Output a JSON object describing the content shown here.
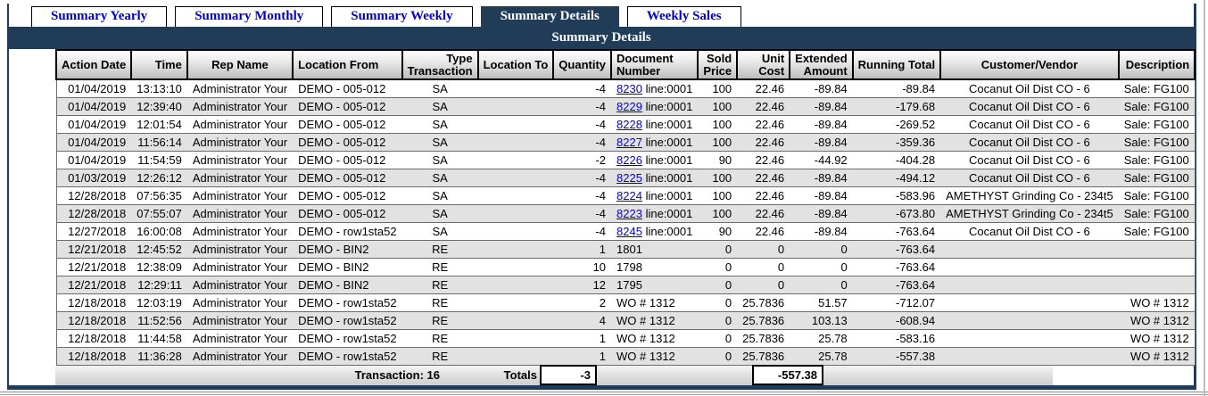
{
  "title": "Summary Details",
  "tabs": [
    {
      "label": "Summary Yearly",
      "active": false
    },
    {
      "label": "Summary Monthly",
      "active": false
    },
    {
      "label": "Summary Weekly",
      "active": false
    },
    {
      "label": "Summary Details",
      "active": true
    },
    {
      "label": "Weekly Sales",
      "active": false
    }
  ],
  "colors": {
    "frame_navy": "#203c57",
    "tab_text_blue": "#0000cc",
    "link_blue": "#0000e6",
    "row_stripe_gray": "#e2e2e2"
  },
  "table": {
    "columns": [
      {
        "lines": [
          "Action Date"
        ]
      },
      {
        "lines": [
          "Time"
        ]
      },
      {
        "lines": [
          "Rep Name"
        ]
      },
      {
        "lines": [
          "Location From"
        ]
      },
      {
        "lines": [
          "Type",
          "Transaction"
        ]
      },
      {
        "lines": [
          "Location To"
        ]
      },
      {
        "lines": [
          "Quantity"
        ]
      },
      {
        "lines": [
          "Document",
          "Number"
        ]
      },
      {
        "lines": [
          "Sold",
          "Price"
        ]
      },
      {
        "lines": [
          "Unit",
          "Cost"
        ]
      },
      {
        "lines": [
          "Extended",
          "Amount"
        ]
      },
      {
        "lines": [
          "Running Total"
        ]
      },
      {
        "lines": [
          "Customer/Vendor"
        ]
      },
      {
        "lines": [
          "Description"
        ]
      }
    ],
    "rows": [
      {
        "date": "01/04/2019",
        "time": "13:13:10",
        "rep": "Administrator Your",
        "from": "DEMO - 005-012",
        "type": "SA",
        "to": "",
        "qty": "-4",
        "doc_link": "8230",
        "doc_text": " line:0001",
        "sold": "100",
        "unit": "22.46",
        "ext": "-89.84",
        "run": "-89.84",
        "customer": "Cocanut Oil Dist CO - 6",
        "desc": "Sale: FG100"
      },
      {
        "date": "01/04/2019",
        "time": "12:39:40",
        "rep": "Administrator Your",
        "from": "DEMO - 005-012",
        "type": "SA",
        "to": "",
        "qty": "-4",
        "doc_link": "8229",
        "doc_text": " line:0001",
        "sold": "100",
        "unit": "22.46",
        "ext": "-89.84",
        "run": "-179.68",
        "customer": "Cocanut Oil Dist CO - 6",
        "desc": "Sale: FG100"
      },
      {
        "date": "01/04/2019",
        "time": "12:01:54",
        "rep": "Administrator Your",
        "from": "DEMO - 005-012",
        "type": "SA",
        "to": "",
        "qty": "-4",
        "doc_link": "8228",
        "doc_text": " line:0001",
        "sold": "100",
        "unit": "22.46",
        "ext": "-89.84",
        "run": "-269.52",
        "customer": "Cocanut Oil Dist CO - 6",
        "desc": "Sale: FG100"
      },
      {
        "date": "01/04/2019",
        "time": "11:56:14",
        "rep": "Administrator Your",
        "from": "DEMO - 005-012",
        "type": "SA",
        "to": "",
        "qty": "-4",
        "doc_link": "8227",
        "doc_text": " line:0001",
        "sold": "100",
        "unit": "22.46",
        "ext": "-89.84",
        "run": "-359.36",
        "customer": "Cocanut Oil Dist CO - 6",
        "desc": "Sale: FG100"
      },
      {
        "date": "01/04/2019",
        "time": "11:54:59",
        "rep": "Administrator Your",
        "from": "DEMO - 005-012",
        "type": "SA",
        "to": "",
        "qty": "-2",
        "doc_link": "8226",
        "doc_text": " line:0001",
        "sold": "90",
        "unit": "22.46",
        "ext": "-44.92",
        "run": "-404.28",
        "customer": "Cocanut Oil Dist CO - 6",
        "desc": "Sale: FG100"
      },
      {
        "date": "01/03/2019",
        "time": "12:26:12",
        "rep": "Administrator Your",
        "from": "DEMO - 005-012",
        "type": "SA",
        "to": "",
        "qty": "-4",
        "doc_link": "8225",
        "doc_text": " line:0001",
        "sold": "100",
        "unit": "22.46",
        "ext": "-89.84",
        "run": "-494.12",
        "customer": "Cocanut Oil Dist CO - 6",
        "desc": "Sale: FG100"
      },
      {
        "date": "12/28/2018",
        "time": "07:56:35",
        "rep": "Administrator Your",
        "from": "DEMO - 005-012",
        "type": "SA",
        "to": "",
        "qty": "-4",
        "doc_link": "8224",
        "doc_text": " line:0001",
        "sold": "100",
        "unit": "22.46",
        "ext": "-89.84",
        "run": "-583.96",
        "customer": "AMETHYST Grinding Co - 234t5",
        "desc": "Sale: FG100"
      },
      {
        "date": "12/28/2018",
        "time": "07:55:07",
        "rep": "Administrator Your",
        "from": "DEMO - 005-012",
        "type": "SA",
        "to": "",
        "qty": "-4",
        "doc_link": "8223",
        "doc_text": " line:0001",
        "sold": "100",
        "unit": "22.46",
        "ext": "-89.84",
        "run": "-673.80",
        "customer": "AMETHYST Grinding Co - 234t5",
        "desc": "Sale: FG100"
      },
      {
        "date": "12/27/2018",
        "time": "16:00:08",
        "rep": "Administrator Your",
        "from": "DEMO - row1sta52",
        "type": "SA",
        "to": "",
        "qty": "-4",
        "doc_link": "8245",
        "doc_text": " line:0001",
        "sold": "90",
        "unit": "22.46",
        "ext": "-89.84",
        "run": "-763.64",
        "customer": "Cocanut Oil Dist CO - 6",
        "desc": "Sale: FG100"
      },
      {
        "date": "12/21/2018",
        "time": "12:45:52",
        "rep": "Administrator Your",
        "from": "DEMO - BIN2",
        "type": "RE",
        "to": "",
        "qty": "1",
        "doc_link": "",
        "doc_text": "1801",
        "sold": "0",
        "unit": "0",
        "ext": "0",
        "run": "-763.64",
        "customer": "",
        "desc": ""
      },
      {
        "date": "12/21/2018",
        "time": "12:38:09",
        "rep": "Administrator Your",
        "from": "DEMO - BIN2",
        "type": "RE",
        "to": "",
        "qty": "10",
        "doc_link": "",
        "doc_text": "1798",
        "sold": "0",
        "unit": "0",
        "ext": "0",
        "run": "-763.64",
        "customer": "",
        "desc": ""
      },
      {
        "date": "12/21/2018",
        "time": "12:29:11",
        "rep": "Administrator Your",
        "from": "DEMO - BIN2",
        "type": "RE",
        "to": "",
        "qty": "12",
        "doc_link": "",
        "doc_text": "1795",
        "sold": "0",
        "unit": "0",
        "ext": "0",
        "run": "-763.64",
        "customer": "",
        "desc": ""
      },
      {
        "date": "12/18/2018",
        "time": "12:03:19",
        "rep": "Administrator Your",
        "from": "DEMO - row1sta52",
        "type": "RE",
        "to": "",
        "qty": "2",
        "doc_link": "",
        "doc_text": "WO # 1312",
        "sold": "0",
        "unit": "25.7836",
        "ext": "51.57",
        "run": "-712.07",
        "customer": "",
        "desc": "WO # 1312"
      },
      {
        "date": "12/18/2018",
        "time": "11:52:56",
        "rep": "Administrator Your",
        "from": "DEMO - row1sta52",
        "type": "RE",
        "to": "",
        "qty": "4",
        "doc_link": "",
        "doc_text": "WO # 1312",
        "sold": "0",
        "unit": "25.7836",
        "ext": "103.13",
        "run": "-608.94",
        "customer": "",
        "desc": "WO # 1312"
      },
      {
        "date": "12/18/2018",
        "time": "11:44:58",
        "rep": "Administrator Your",
        "from": "DEMO - row1sta52",
        "type": "RE",
        "to": "",
        "qty": "1",
        "doc_link": "",
        "doc_text": "WO # 1312",
        "sold": "0",
        "unit": "25.7836",
        "ext": "25.78",
        "run": "-583.16",
        "customer": "",
        "desc": "WO # 1312"
      },
      {
        "date": "12/18/2018",
        "time": "11:36:28",
        "rep": "Administrator Your",
        "from": "DEMO - row1sta52",
        "type": "RE",
        "to": "",
        "qty": "1",
        "doc_link": "",
        "doc_text": "WO # 1312",
        "sold": "0",
        "unit": "25.7836",
        "ext": "25.78",
        "run": "-557.38",
        "customer": "",
        "desc": "WO # 1312"
      }
    ]
  },
  "footer": {
    "transaction_label": "Transaction: 16",
    "totals_label": "Totals",
    "quantity_total": "-3",
    "amount_total": "-557.38"
  }
}
